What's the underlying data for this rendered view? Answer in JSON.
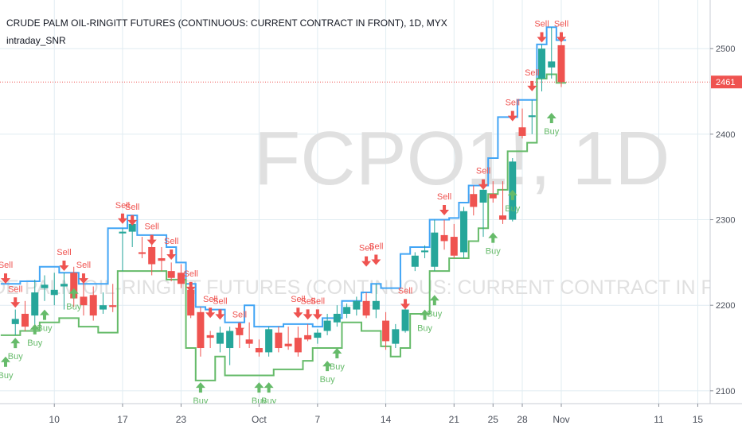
{
  "header": {
    "title": "CRUDE PALM OIL-RINGITT FUTURES (CONTINUOUS: CURRENT CONTRACT IN FRONT), 1D, MYX",
    "indicator": "intraday_SNR"
  },
  "watermark": {
    "symbol": "FCPO1!, 1D",
    "description": "CRUDE PALM OIL-RINGITT FUTURES (CONTINUOUS: CURRENT CONTRACT IN FRONT)"
  },
  "colors": {
    "up": "#26a69a",
    "down": "#ef5350",
    "sell": "#ef5350",
    "buy": "#66bb6a",
    "resistance": "#42a5f5",
    "support": "#66bb6a",
    "price_line": "#ef5350",
    "grid": "#e1ecf2",
    "watermark": "#e0e0e0"
  },
  "chart_data": {
    "type": "candlestick",
    "y_axis": {
      "range": [
        2085,
        2555
      ],
      "ticks": [
        2100,
        2200,
        2300,
        2400,
        2500
      ],
      "side": "right"
    },
    "x_axis": {
      "ticks": [
        {
          "label": "10",
          "day": 10
        },
        {
          "label": "17",
          "day": 17
        },
        {
          "label": "23",
          "day": 23
        },
        {
          "label": "Oct",
          "day": 31
        },
        {
          "label": "7",
          "day": 37
        },
        {
          "label": "14",
          "day": 44
        },
        {
          "label": "21",
          "day": 51
        },
        {
          "label": "25",
          "day": 55
        },
        {
          "label": "28",
          "day": 58
        },
        {
          "label": "Nov",
          "day": 62
        },
        {
          "label": "11",
          "day": 72
        },
        {
          "label": "15",
          "day": 76
        }
      ]
    },
    "current_price": {
      "value": 2461,
      "label": "2461"
    },
    "candles": [
      {
        "day": 6,
        "o": 2178,
        "h": 2195,
        "l": 2165,
        "c": 2184
      },
      {
        "day": 7,
        "o": 2190,
        "h": 2205,
        "l": 2170,
        "c": 2175
      },
      {
        "day": 8,
        "o": 2188,
        "h": 2230,
        "l": 2175,
        "c": 2215
      },
      {
        "day": 9,
        "o": 2220,
        "h": 2235,
        "l": 2205,
        "c": 2224
      },
      {
        "day": 10,
        "o": 2212,
        "h": 2238,
        "l": 2200,
        "c": 2218
      },
      {
        "day": 11,
        "o": 2222,
        "h": 2238,
        "l": 2195,
        "c": 2225
      },
      {
        "day": 12,
        "o": 2238,
        "h": 2245,
        "l": 2198,
        "c": 2208
      },
      {
        "day": 13,
        "o": 2210,
        "h": 2230,
        "l": 2188,
        "c": 2200
      },
      {
        "day": 14,
        "o": 2212,
        "h": 2222,
        "l": 2182,
        "c": 2188
      },
      {
        "day": 15,
        "o": 2195,
        "h": 2215,
        "l": 2190,
        "c": 2200
      },
      {
        "day": 16,
        "o": 2200,
        "h": 2225,
        "l": 2192,
        "c": 2198
      },
      {
        "day": 17,
        "o": 2284,
        "h": 2290,
        "l": 2240,
        "c": 2286
      },
      {
        "day": 18,
        "o": 2286,
        "h": 2305,
        "l": 2268,
        "c": 2295
      },
      {
        "day": 19,
        "o": 2262,
        "h": 2280,
        "l": 2255,
        "c": 2260
      },
      {
        "day": 20,
        "o": 2268,
        "h": 2282,
        "l": 2235,
        "c": 2248
      },
      {
        "day": 21,
        "o": 2255,
        "h": 2268,
        "l": 2240,
        "c": 2252
      },
      {
        "day": 22,
        "o": 2240,
        "h": 2250,
        "l": 2228,
        "c": 2232
      },
      {
        "day": 23,
        "o": 2238,
        "h": 2248,
        "l": 2220,
        "c": 2225
      },
      {
        "day": 24,
        "o": 2218,
        "h": 2225,
        "l": 2185,
        "c": 2188
      },
      {
        "day": 25,
        "o": 2192,
        "h": 2198,
        "l": 2140,
        "c": 2150
      },
      {
        "day": 26,
        "o": 2165,
        "h": 2170,
        "l": 2150,
        "c": 2162
      },
      {
        "day": 27,
        "o": 2155,
        "h": 2175,
        "l": 2145,
        "c": 2168
      },
      {
        "day": 28,
        "o": 2150,
        "h": 2175,
        "l": 2130,
        "c": 2170
      },
      {
        "day": 29,
        "o": 2172,
        "h": 2180,
        "l": 2150,
        "c": 2165
      },
      {
        "day": 30,
        "o": 2160,
        "h": 2180,
        "l": 2150,
        "c": 2155
      },
      {
        "day": 31,
        "o": 2150,
        "h": 2160,
        "l": 2140,
        "c": 2145
      },
      {
        "day": 32,
        "o": 2145,
        "h": 2175,
        "l": 2140,
        "c": 2172
      },
      {
        "day": 33,
        "o": 2168,
        "h": 2175,
        "l": 2145,
        "c": 2150
      },
      {
        "day": 34,
        "o": 2155,
        "h": 2175,
        "l": 2148,
        "c": 2152
      },
      {
        "day": 35,
        "o": 2162,
        "h": 2175,
        "l": 2140,
        "c": 2145
      },
      {
        "day": 36,
        "o": 2165,
        "h": 2178,
        "l": 2158,
        "c": 2160
      },
      {
        "day": 37,
        "o": 2162,
        "h": 2172,
        "l": 2155,
        "c": 2168
      },
      {
        "day": 38,
        "o": 2170,
        "h": 2190,
        "l": 2165,
        "c": 2182
      },
      {
        "day": 39,
        "o": 2180,
        "h": 2200,
        "l": 2175,
        "c": 2190
      },
      {
        "day": 40,
        "o": 2190,
        "h": 2202,
        "l": 2185,
        "c": 2198
      },
      {
        "day": 41,
        "o": 2195,
        "h": 2210,
        "l": 2188,
        "c": 2205
      },
      {
        "day": 42,
        "o": 2205,
        "h": 2215,
        "l": 2185,
        "c": 2188
      },
      {
        "day": 43,
        "o": 2195,
        "h": 2225,
        "l": 2185,
        "c": 2205
      },
      {
        "day": 44,
        "o": 2182,
        "h": 2192,
        "l": 2148,
        "c": 2158
      },
      {
        "day": 45,
        "o": 2155,
        "h": 2178,
        "l": 2150,
        "c": 2172
      },
      {
        "day": 46,
        "o": 2170,
        "h": 2200,
        "l": 2168,
        "c": 2195
      },
      {
        "day": 47,
        "o": 2245,
        "h": 2262,
        "l": 2240,
        "c": 2258
      },
      {
        "day": 48,
        "o": 2262,
        "h": 2270,
        "l": 2255,
        "c": 2264
      },
      {
        "day": 49,
        "o": 2245,
        "h": 2300,
        "l": 2240,
        "c": 2285
      },
      {
        "day": 50,
        "o": 2282,
        "h": 2300,
        "l": 2265,
        "c": 2275
      },
      {
        "day": 51,
        "o": 2280,
        "h": 2295,
        "l": 2255,
        "c": 2258
      },
      {
        "day": 52,
        "o": 2262,
        "h": 2315,
        "l": 2255,
        "c": 2310
      },
      {
        "day": 53,
        "o": 2330,
        "h": 2340,
        "l": 2305,
        "c": 2315
      },
      {
        "day": 54,
        "o": 2320,
        "h": 2340,
        "l": 2280,
        "c": 2335
      },
      {
        "day": 55,
        "o": 2330,
        "h": 2345,
        "l": 2320,
        "c": 2325
      },
      {
        "day": 56,
        "o": 2305,
        "h": 2345,
        "l": 2295,
        "c": 2300
      },
      {
        "day": 57,
        "o": 2300,
        "h": 2372,
        "l": 2298,
        "c": 2368
      },
      {
        "day": 58,
        "o": 2408,
        "h": 2430,
        "l": 2395,
        "c": 2398
      },
      {
        "day": 59,
        "o": 2420,
        "h": 2440,
        "l": 2400,
        "c": 2422
      },
      {
        "day": 60,
        "o": 2465,
        "h": 2505,
        "l": 2450,
        "c": 2500
      },
      {
        "day": 61,
        "o": 2478,
        "h": 2525,
        "l": 2465,
        "c": 2485
      },
      {
        "day": 62,
        "o": 2504,
        "h": 2508,
        "l": 2455,
        "c": 2461
      }
    ],
    "resistance_line": [
      {
        "day": 5,
        "y": 2225
      },
      {
        "day": 7,
        "y": 2228
      },
      {
        "day": 9,
        "y": 2245
      },
      {
        "day": 11,
        "y": 2238
      },
      {
        "day": 13,
        "y": 2225
      },
      {
        "day": 16,
        "y": 2290
      },
      {
        "day": 18,
        "y": 2305
      },
      {
        "day": 19,
        "y": 2282
      },
      {
        "day": 22,
        "y": 2268
      },
      {
        "day": 23,
        "y": 2250
      },
      {
        "day": 24,
        "y": 2225
      },
      {
        "day": 25,
        "y": 2198
      },
      {
        "day": 26,
        "y": 2195
      },
      {
        "day": 28,
        "y": 2180
      },
      {
        "day": 30,
        "y": 2200
      },
      {
        "day": 31,
        "y": 2175
      },
      {
        "day": 34,
        "y": 2178
      },
      {
        "day": 37,
        "y": 2175
      },
      {
        "day": 38,
        "y": 2185
      },
      {
        "day": 40,
        "y": 2205
      },
      {
        "day": 42,
        "y": 2215
      },
      {
        "day": 43,
        "y": 2225
      },
      {
        "day": 44,
        "y": 2220
      },
      {
        "day": 46,
        "y": 2260
      },
      {
        "day": 47,
        "y": 2268
      },
      {
        "day": 49,
        "y": 2300
      },
      {
        "day": 51,
        "y": 2302
      },
      {
        "day": 52,
        "y": 2320
      },
      {
        "day": 53,
        "y": 2340
      },
      {
        "day": 55,
        "y": 2372
      },
      {
        "day": 56,
        "y": 2420
      },
      {
        "day": 58,
        "y": 2440
      },
      {
        "day": 60,
        "y": 2505
      },
      {
        "day": 61,
        "y": 2525
      },
      {
        "day": 62,
        "y": 2510
      }
    ],
    "support_line": [
      {
        "day": 5,
        "y": 2165
      },
      {
        "day": 7,
        "y": 2170
      },
      {
        "day": 9,
        "y": 2180
      },
      {
        "day": 11,
        "y": 2185
      },
      {
        "day": 13,
        "y": 2175
      },
      {
        "day": 14,
        "y": 2175
      },
      {
        "day": 15,
        "y": 2168
      },
      {
        "day": 17,
        "y": 2240
      },
      {
        "day": 20,
        "y": 2240
      },
      {
        "day": 22,
        "y": 2230
      },
      {
        "day": 24,
        "y": 2150
      },
      {
        "day": 25,
        "y": 2112
      },
      {
        "day": 27,
        "y": 2140
      },
      {
        "day": 28,
        "y": 2118
      },
      {
        "day": 30,
        "y": 2118
      },
      {
        "day": 33,
        "y": 2125
      },
      {
        "day": 36,
        "y": 2135
      },
      {
        "day": 37,
        "y": 2150
      },
      {
        "day": 39,
        "y": 2150
      },
      {
        "day": 40,
        "y": 2180
      },
      {
        "day": 42,
        "y": 2170
      },
      {
        "day": 44,
        "y": 2152
      },
      {
        "day": 45,
        "y": 2140
      },
      {
        "day": 46,
        "y": 2150
      },
      {
        "day": 47,
        "y": 2190
      },
      {
        "day": 49,
        "y": 2240
      },
      {
        "day": 51,
        "y": 2255
      },
      {
        "day": 52,
        "y": 2255
      },
      {
        "day": 53,
        "y": 2275
      },
      {
        "day": 54,
        "y": 2290
      },
      {
        "day": 55,
        "y": 2330
      },
      {
        "day": 56,
        "y": 2335
      },
      {
        "day": 57,
        "y": 2380
      },
      {
        "day": 59,
        "y": 2390
      },
      {
        "day": 60,
        "y": 2465
      },
      {
        "day": 61,
        "y": 2470
      },
      {
        "day": 62,
        "y": 2460
      }
    ],
    "sell_signals": [
      {
        "day": 5,
        "y": 2240,
        "label": "Sell"
      },
      {
        "day": 6,
        "y": 2212,
        "label": "Sell"
      },
      {
        "day": 11,
        "y": 2255,
        "label": "Sell"
      },
      {
        "day": 13,
        "y": 2240,
        "label": "Sell"
      },
      {
        "day": 17,
        "y": 2310,
        "label": "Sell"
      },
      {
        "day": 18,
        "y": 2308,
        "label": "Sell"
      },
      {
        "day": 20,
        "y": 2285,
        "label": "Sell"
      },
      {
        "day": 22,
        "y": 2268,
        "label": "Sell"
      },
      {
        "day": 24,
        "y": 2230,
        "label": "Sell"
      },
      {
        "day": 26,
        "y": 2200,
        "label": "Sell"
      },
      {
        "day": 27,
        "y": 2198,
        "label": "Sell"
      },
      {
        "day": 29,
        "y": 2182,
        "label": "Sell"
      },
      {
        "day": 35,
        "y": 2200,
        "label": "Sell"
      },
      {
        "day": 36,
        "y": 2198,
        "label": "Sell"
      },
      {
        "day": 37,
        "y": 2198,
        "label": "Sell"
      },
      {
        "day": 42,
        "y": 2260,
        "label": "Sell"
      },
      {
        "day": 43,
        "y": 2262,
        "label": "Sell"
      },
      {
        "day": 46,
        "y": 2210,
        "label": "Sell"
      },
      {
        "day": 50,
        "y": 2320,
        "label": "Sell"
      },
      {
        "day": 54,
        "y": 2350,
        "label": "Sell"
      },
      {
        "day": 57,
        "y": 2430,
        "label": "Sell"
      },
      {
        "day": 59,
        "y": 2465,
        "label": "Sell"
      },
      {
        "day": 60,
        "y": 2522,
        "label": "Sell"
      },
      {
        "day": 62,
        "y": 2522,
        "label": "Sell"
      }
    ],
    "buy_signals": [
      {
        "day": 5,
        "y": 2140,
        "label": "Buy"
      },
      {
        "day": 6,
        "y": 2162,
        "label": "Buy"
      },
      {
        "day": 8,
        "y": 2178,
        "label": "Buy"
      },
      {
        "day": 9,
        "y": 2195,
        "label": "Buy"
      },
      {
        "day": 12,
        "y": 2220,
        "label": "Buy"
      },
      {
        "day": 25,
        "y": 2110,
        "label": "Buy"
      },
      {
        "day": 31,
        "y": 2110,
        "label": "Buy"
      },
      {
        "day": 32,
        "y": 2110,
        "label": "Buy"
      },
      {
        "day": 38,
        "y": 2135,
        "label": "Buy"
      },
      {
        "day": 39,
        "y": 2150,
        "label": "Buy"
      },
      {
        "day": 48,
        "y": 2195,
        "label": "Buy"
      },
      {
        "day": 49,
        "y": 2212,
        "label": "Buy"
      },
      {
        "day": 55,
        "y": 2285,
        "label": "Buy"
      },
      {
        "day": 57,
        "y": 2335,
        "label": "Buy"
      },
      {
        "day": 61,
        "y": 2425,
        "label": "Buy"
      }
    ]
  }
}
